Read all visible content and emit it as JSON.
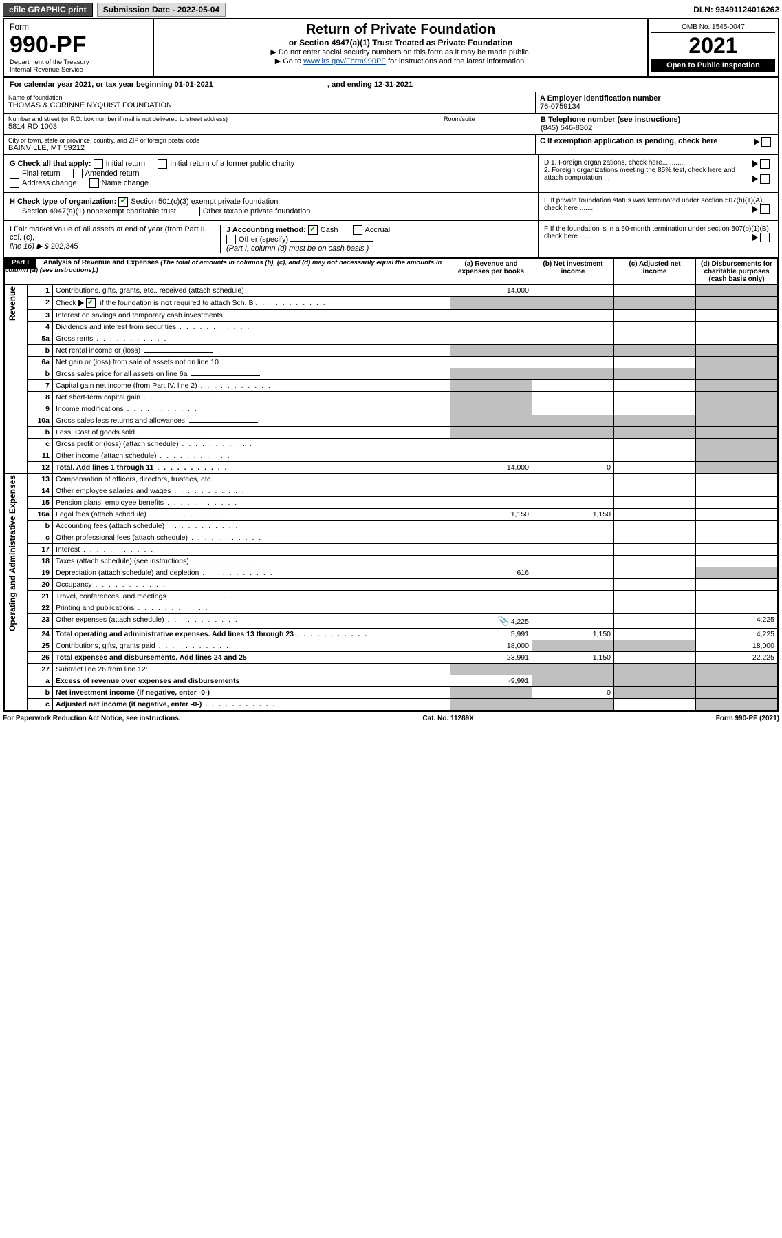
{
  "topbar": {
    "efile": "efile GRAPHIC print",
    "submission_label": "Submission Date - 2022-05-04",
    "dln": "DLN: 93491124016262"
  },
  "header": {
    "form_word": "Form",
    "form_num": "990-PF",
    "dept": "Department of the Treasury",
    "irs": "Internal Revenue Service",
    "title": "Return of Private Foundation",
    "subtitle": "or Section 4947(a)(1) Trust Treated as Private Foundation",
    "instr1": "▶ Do not enter social security numbers on this form as it may be made public.",
    "instr2_pre": "▶ Go to ",
    "instr2_link": "www.irs.gov/Form990PF",
    "instr2_post": " for instructions and the latest information.",
    "omb": "OMB No. 1545-0047",
    "year": "2021",
    "open": "Open to Public Inspection"
  },
  "calendar": {
    "text_a": "For calendar year 2021, or tax year beginning 01-01-2021",
    "text_b": ", and ending 12-31-2021"
  },
  "foundation": {
    "name_label": "Name of foundation",
    "name": "THOMAS & CORINNE NYQUIST FOUNDATION",
    "ein_label": "A Employer identification number",
    "ein": "76-0759134",
    "addr_label": "Number and street (or P.O. box number if mail is not delivered to street address)",
    "addr": "5814 RD 1003",
    "room_label": "Room/suite",
    "phone_label": "B Telephone number (see instructions)",
    "phone": "(845) 546-8302",
    "city_label": "City or town, state or province, country, and ZIP or foreign postal code",
    "city": "BAINVILLE, MT  59212",
    "c_label": "C If exemption application is pending, check here"
  },
  "g_section": {
    "label": "G Check all that apply:",
    "opts": [
      "Initial return",
      "Initial return of a former public charity",
      "Final return",
      "Amended return",
      "Address change",
      "Name change"
    ],
    "d1": "D 1. Foreign organizations, check here............",
    "d2": "2. Foreign organizations meeting the 85% test, check here and attach computation ..."
  },
  "h_section": {
    "label": "H Check type of organization:",
    "opt1": "Section 501(c)(3) exempt private foundation",
    "opt2": "Section 4947(a)(1) nonexempt charitable trust",
    "opt3": "Other taxable private foundation",
    "e_label": "E If private foundation status was terminated under section 507(b)(1)(A), check here ......."
  },
  "i_section": {
    "label_a": "I Fair market value of all assets at end of year (from Part II, col. (c),",
    "label_b": "line 16) ▶ $",
    "value": "202,345",
    "j_label": "J Accounting method:",
    "j_cash": "Cash",
    "j_accrual": "Accrual",
    "j_other": "Other (specify)",
    "j_note": "(Part I, column (d) must be on cash basis.)",
    "f_label": "F  If the foundation is in a 60-month termination under section 507(b)(1)(B), check here ......."
  },
  "part1": {
    "head": "Part I",
    "title": "Analysis of Revenue and Expenses",
    "note": " (The total of amounts in columns (b), (c), and (d) may not necessarily equal the amounts in column (a) (see instructions).)",
    "col_a": "(a)   Revenue and expenses per books",
    "col_b": "(b)   Net investment income",
    "col_c": "(c)   Adjusted net income",
    "col_d": "(d)  Disbursements for charitable purposes (cash basis only)"
  },
  "side": {
    "revenue": "Revenue",
    "expenses": "Operating and Administrative Expenses"
  },
  "rows": [
    {
      "n": "1",
      "d": "Contributions, gifts, grants, etc., received (attach schedule)",
      "a": "14,000",
      "shade": [
        "d"
      ]
    },
    {
      "n": "2",
      "d": "Check ▶ [✔] if the foundation is not required to attach Sch. B",
      "dots": true,
      "shade": [
        "a",
        "b",
        "c",
        "d"
      ],
      "allshade": true
    },
    {
      "n": "3",
      "d": "Interest on savings and temporary cash investments"
    },
    {
      "n": "4",
      "d": "Dividends and interest from securities",
      "dots": true
    },
    {
      "n": "5a",
      "d": "Gross rents",
      "dots": true
    },
    {
      "n": "b",
      "d": "Net rental income or (loss)",
      "shade": [
        "a",
        "b",
        "c",
        "d"
      ],
      "inline": true
    },
    {
      "n": "6a",
      "d": "Net gain or (loss) from sale of assets not on line 10",
      "shade": [
        "d"
      ]
    },
    {
      "n": "b",
      "d": "Gross sales price for all assets on line 6a",
      "shade": [
        "a",
        "b",
        "c",
        "d"
      ],
      "inline": true
    },
    {
      "n": "7",
      "d": "Capital gain net income (from Part IV, line 2)",
      "dots": true,
      "shade": [
        "a",
        "d"
      ]
    },
    {
      "n": "8",
      "d": "Net short-term capital gain",
      "dots": true,
      "shade": [
        "a",
        "d"
      ]
    },
    {
      "n": "9",
      "d": "Income modifications",
      "dots": true,
      "shade": [
        "a",
        "d"
      ]
    },
    {
      "n": "10a",
      "d": "Gross sales less returns and allowances",
      "shade": [
        "a",
        "b",
        "c",
        "d"
      ],
      "inline": true
    },
    {
      "n": "b",
      "d": "Less: Cost of goods sold",
      "dots": true,
      "shade": [
        "a",
        "b",
        "c",
        "d"
      ],
      "inline": true
    },
    {
      "n": "c",
      "d": "Gross profit or (loss) (attach schedule)",
      "dots": true,
      "shade": [
        "d"
      ]
    },
    {
      "n": "11",
      "d": "Other income (attach schedule)",
      "dots": true,
      "shade": [
        "d"
      ]
    },
    {
      "n": "12",
      "d": "Total. Add lines 1 through 11",
      "dots": true,
      "a": "14,000",
      "b": "0",
      "bold": true,
      "shade": [
        "d"
      ]
    },
    {
      "n": "13",
      "d": "Compensation of officers, directors, trustees, etc."
    },
    {
      "n": "14",
      "d": "Other employee salaries and wages",
      "dots": true
    },
    {
      "n": "15",
      "d": "Pension plans, employee benefits",
      "dots": true
    },
    {
      "n": "16a",
      "d": "Legal fees (attach schedule)",
      "dots": true,
      "a": "1,150",
      "b": "1,150"
    },
    {
      "n": "b",
      "d": "Accounting fees (attach schedule)",
      "dots": true
    },
    {
      "n": "c",
      "d": "Other professional fees (attach schedule)",
      "dots": true
    },
    {
      "n": "17",
      "d": "Interest",
      "dots": true
    },
    {
      "n": "18",
      "d": "Taxes (attach schedule) (see instructions)",
      "dots": true
    },
    {
      "n": "19",
      "d": "Depreciation (attach schedule) and depletion",
      "dots": true,
      "a": "616",
      "shade": [
        "d"
      ]
    },
    {
      "n": "20",
      "d": "Occupancy",
      "dots": true
    },
    {
      "n": "21",
      "d": "Travel, conferences, and meetings",
      "dots": true
    },
    {
      "n": "22",
      "d": "Printing and publications",
      "dots": true
    },
    {
      "n": "23",
      "d": "Other expenses (attach schedule)",
      "dots": true,
      "a": "4,225",
      "dval": "4,225",
      "icon": true
    },
    {
      "n": "24",
      "d": "Total operating and administrative expenses. Add lines 13 through 23",
      "dots": true,
      "a": "5,991",
      "b": "1,150",
      "dval": "4,225",
      "bold": true
    },
    {
      "n": "25",
      "d": "Contributions, gifts, grants paid",
      "dots": true,
      "a": "18,000",
      "dval": "18,000",
      "shade": [
        "b",
        "c"
      ]
    },
    {
      "n": "26",
      "d": "Total expenses and disbursements. Add lines 24 and 25",
      "a": "23,991",
      "b": "1,150",
      "dval": "22,225",
      "bold": true
    },
    {
      "n": "27",
      "d": "Subtract line 26 from line 12:",
      "shade": [
        "a",
        "b",
        "c",
        "d"
      ],
      "allshade": true
    },
    {
      "n": "a",
      "d": "Excess of revenue over expenses and disbursements",
      "a": "-9,991",
      "bold": true,
      "shade": [
        "b",
        "c",
        "d"
      ]
    },
    {
      "n": "b",
      "d": "Net investment income (if negative, enter -0-)",
      "b": "0",
      "bold": true,
      "shade": [
        "a",
        "c",
        "d"
      ]
    },
    {
      "n": "c",
      "d": "Adjusted net income (if negative, enter -0-)",
      "dots": true,
      "bold": true,
      "shade": [
        "a",
        "b",
        "d"
      ]
    }
  ],
  "footer": {
    "left": "For Paperwork Reduction Act Notice, see instructions.",
    "center": "Cat. No. 11289X",
    "right": "Form 990-PF (2021)"
  }
}
